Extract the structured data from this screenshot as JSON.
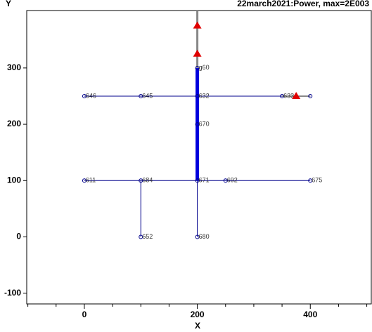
{
  "chart_data": {
    "type": "network",
    "title": "22march2021:Power, max=2E003",
    "xlabel": "X",
    "ylabel": "Y",
    "xlim": [
      -102,
      508
    ],
    "ylim": [
      -119,
      402
    ],
    "xticks": [
      0,
      200,
      400
    ],
    "xminorticks": [
      -100,
      -50,
      50,
      100,
      150,
      250,
      300,
      350,
      450,
      500
    ],
    "yticks": [
      -100,
      0,
      100,
      200,
      300
    ],
    "segments": [
      {
        "x": [
          0,
          200
        ],
        "y": [
          250,
          250
        ],
        "color": "#00008b",
        "width": 1
      },
      {
        "x": [
          200,
          400
        ],
        "y": [
          250,
          250
        ],
        "color": "#00008b",
        "width": 1
      },
      {
        "x": [
          350,
          400
        ],
        "y": [
          250,
          250
        ],
        "color": "#888888",
        "width": 2
      },
      {
        "x": [
          0,
          400
        ],
        "y": [
          100,
          100
        ],
        "color": "#00008b",
        "width": 1
      },
      {
        "x": [
          100,
          100
        ],
        "y": [
          100,
          0
        ],
        "color": "#00008b",
        "width": 1
      },
      {
        "x": [
          200,
          200
        ],
        "y": [
          100,
          0
        ],
        "color": "#00008b",
        "width": 1
      },
      {
        "x": [
          200,
          200
        ],
        "y": [
          100,
          300
        ],
        "color": "#0000dd",
        "width": 5
      },
      {
        "x": [
          200,
          200
        ],
        "y": [
          300,
          402
        ],
        "color": "#888888",
        "width": 3
      }
    ],
    "nodes": {
      "x": [
        0,
        100,
        200,
        350,
        400,
        200,
        200,
        0,
        100,
        200,
        250,
        400,
        100,
        200
      ],
      "y": [
        250,
        250,
        250,
        250,
        250,
        300,
        200,
        100,
        100,
        100,
        100,
        100,
        0,
        0
      ],
      "labels": [
        "646",
        "645",
        "632",
        "633",
        null,
        "g60",
        "670",
        "611",
        "684",
        "671",
        "692",
        "675",
        "652",
        "680"
      ]
    },
    "markers": {
      "x": [
        200,
        200,
        375
      ],
      "y": [
        375,
        325,
        250
      ],
      "color": "#e00000"
    }
  }
}
